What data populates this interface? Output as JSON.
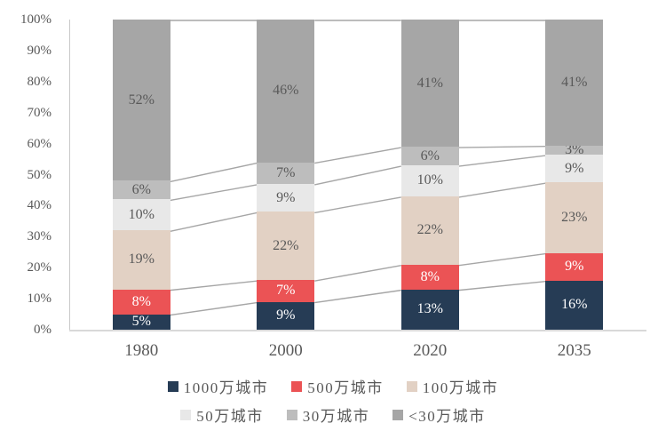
{
  "chart_data": {
    "type": "bar",
    "subtype": "100-percent-stacked-column",
    "title": "",
    "categories": [
      "1980",
      "2000",
      "2020",
      "2035"
    ],
    "series": [
      {
        "name": "1000万城市",
        "color": "#263c55",
        "label_color": "#ffffff",
        "values": [
          5,
          9,
          13,
          16
        ]
      },
      {
        "name": "500万城市",
        "color": "#eb5355",
        "label_color": "#ffffff",
        "values": [
          8,
          7,
          8,
          9
        ]
      },
      {
        "name": "100万城市",
        "color": "#e2d1c4",
        "label_color": "#595959",
        "values": [
          19,
          22,
          22,
          23
        ]
      },
      {
        "name": "50万城市",
        "color": "#e8e8e8",
        "label_color": "#595959",
        "values": [
          10,
          9,
          10,
          9
        ]
      },
      {
        "name": "30万城市",
        "color": "#bdbdbd",
        "label_color": "#595959",
        "values": [
          6,
          7,
          6,
          3
        ]
      },
      {
        "name": "<30万城市",
        "color": "#a6a6a6",
        "label_color": "#595959",
        "values": [
          52,
          46,
          41,
          41
        ]
      }
    ],
    "data_label_suffix": "%",
    "y_axis": {
      "min": 0,
      "max": 100,
      "tick_interval": 10,
      "tick_labels": [
        "0%",
        "10%",
        "20%",
        "30%",
        "40%",
        "50%",
        "60%",
        "70%",
        "80%",
        "90%",
        "100%"
      ]
    },
    "grid": false,
    "legend_position": "bottom",
    "legend_rows": [
      [
        0,
        1,
        2
      ],
      [
        3,
        4,
        5
      ]
    ],
    "connectors": true,
    "colors": {
      "connector": "#a6a6a6",
      "axis_line": "#d9d9d9",
      "tick_text": "#595959"
    }
  }
}
